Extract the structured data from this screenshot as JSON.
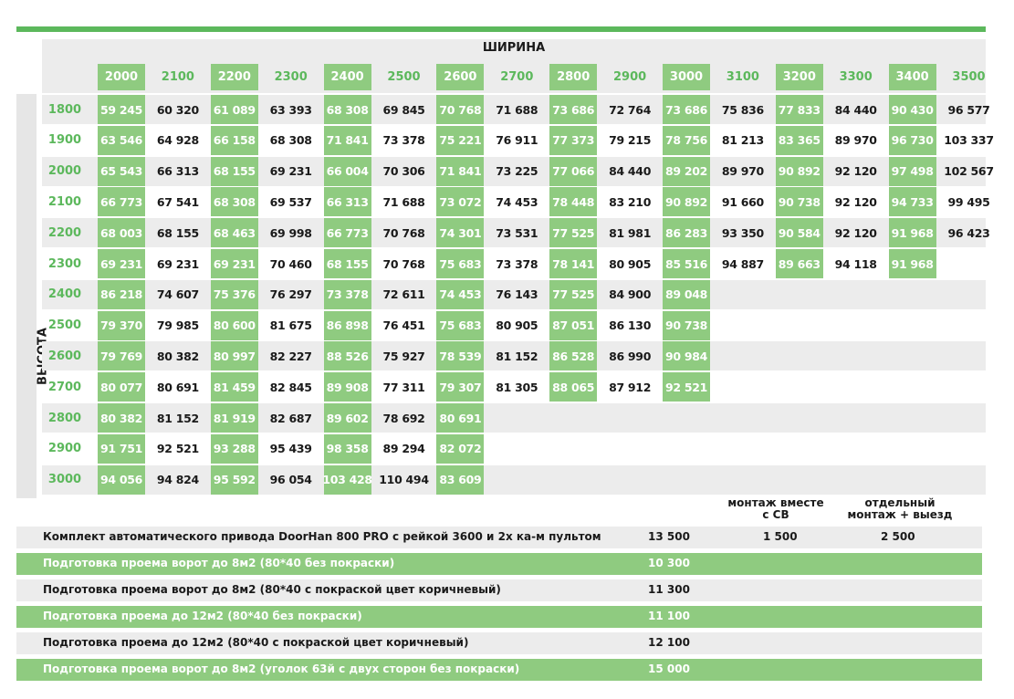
{
  "header": {
    "width_label": "ШИРИНА",
    "height_label": "ВЫСОТА"
  },
  "widths": [
    "2000",
    "2100",
    "2200",
    "2300",
    "2400",
    "2500",
    "2600",
    "2700",
    "2800",
    "2900",
    "3000",
    "3100",
    "3200",
    "3300",
    "3400",
    "3500"
  ],
  "heights": [
    "1800",
    "1900",
    "2000",
    "2100",
    "2200",
    "2300",
    "2400",
    "2500",
    "2600",
    "2700",
    "2800",
    "2900",
    "3000"
  ],
  "prices": [
    [
      "59 245",
      "60 320",
      "61 089",
      "63 393",
      "68 308",
      "69 845",
      "70 768",
      "71 688",
      "73 686",
      "72 764",
      "73 686",
      "75 836",
      "77 833",
      "84 440",
      "90 430",
      "96 577"
    ],
    [
      "63 546",
      "64 928",
      "66 158",
      "68 308",
      "71 841",
      "73 378",
      "75 221",
      "76 911",
      "77 373",
      "79 215",
      "78 756",
      "81 213",
      "83 365",
      "89 970",
      "96 730",
      "103 337"
    ],
    [
      "65 543",
      "66 313",
      "68 155",
      "69 231",
      "66 004",
      "70 306",
      "71 841",
      "73 225",
      "77 066",
      "84 440",
      "89 202",
      "89 970",
      "90 892",
      "92 120",
      "97 498",
      "102 567"
    ],
    [
      "66 773",
      "67 541",
      "68 308",
      "69 537",
      "66 313",
      "71 688",
      "73 072",
      "74 453",
      "78 448",
      "83 210",
      "90 892",
      "91 660",
      "90 738",
      "92 120",
      "94 733",
      "99 495"
    ],
    [
      "68 003",
      "68 155",
      "68 463",
      "69 998",
      "66 773",
      "70 768",
      "74 301",
      "73 531",
      "77 525",
      "81 981",
      "86 283",
      "93 350",
      "90 584",
      "92 120",
      "91 968",
      "96 423"
    ],
    [
      "69 231",
      "69 231",
      "69 231",
      "70 460",
      "68 155",
      "70 768",
      "75 683",
      "73 378",
      "78 141",
      "80 905",
      "85 516",
      "94 887",
      "89 663",
      "94 118",
      "91 968"
    ],
    [
      "86 218",
      "74 607",
      "75 376",
      "76 297",
      "73 378",
      "72 611",
      "74 453",
      "76 143",
      "77 525",
      "84 900",
      "89 048"
    ],
    [
      "79 370",
      "79 985",
      "80 600",
      "81 675",
      "86 898",
      "76 451",
      "75 683",
      "80 905",
      "87 051",
      "86 130",
      "90 738"
    ],
    [
      "79 769",
      "80 382",
      "80 997",
      "82 227",
      "88 526",
      "75 927",
      "78 539",
      "81 152",
      "86 528",
      "86 990",
      "90 984"
    ],
    [
      "80 077",
      "80 691",
      "81 459",
      "82 845",
      "89 908",
      "77 311",
      "79 307",
      "81 305",
      "88 065",
      "87 912",
      "92 521"
    ],
    [
      "80 382",
      "81 152",
      "81 919",
      "82 687",
      "89 602",
      "78 692",
      "80 691"
    ],
    [
      "91 751",
      "92 521",
      "93 288",
      "95 439",
      "98 358",
      "89 294",
      "82 072"
    ],
    [
      "94 056",
      "94 824",
      "95 592",
      "96 054",
      "103 428",
      "110 494",
      "83 609"
    ]
  ],
  "extras_header": {
    "together": "монтаж вместе с СВ",
    "separate": "отдельный монтаж + выезд"
  },
  "extras": [
    {
      "label": "Комплект автоматического привода DoorHan 800 PRO с рейкой 3600 и 2х ка-м пультом",
      "price": "13 500",
      "together": "1 500",
      "separate": "2 500"
    },
    {
      "label": "Подготовка проема ворот до 8м2 (80*40 без покраски)",
      "price": "10 300"
    },
    {
      "label": "Подготовка проема ворот до 8м2 (80*40  с покраской цвет коричневый)",
      "price": "11 300"
    },
    {
      "label": "Подготовка проема до 12м2 (80*40 без покраски)",
      "price": "11 100"
    },
    {
      "label": "Подготовка проема до 12м2 (80*40  с покраской цвет коричневый)",
      "price": "12 100"
    },
    {
      "label": "Подготовка проема ворот до 8м2 (уголок 63й с двух сторон без покраски)",
      "price": "15 000"
    }
  ],
  "colors": {
    "accent_green": "#5cb85c",
    "cell_green": "#8fcb80",
    "stripe_gray": "#ececec"
  }
}
